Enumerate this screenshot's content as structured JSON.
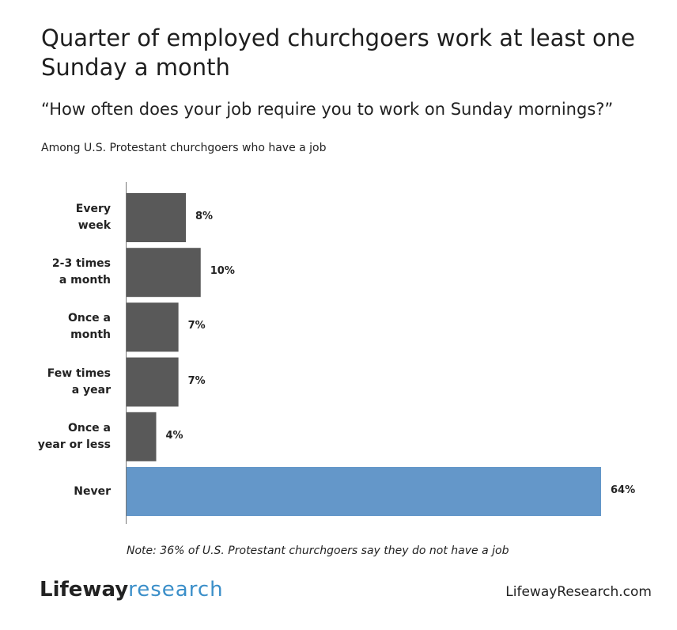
{
  "chart_data": {
    "type": "hbar",
    "title": "Quarter of employed churchgoers work at least one Sunday a month",
    "subtitle": "“How often does your job require you to work on Sunday mornings?”",
    "annotation": "Among U.S. Protestant churchgoers who have a job",
    "categories": [
      "Every\nweek",
      "2-3 times\na month",
      "Once a\nmonth",
      "Few times\na year",
      "Once a\nyear or less",
      "Never"
    ],
    "values": [
      8,
      10,
      7,
      7,
      4,
      64
    ],
    "value_labels": [
      "8%",
      "10%",
      "7%",
      "7%",
      "4%",
      "64%"
    ],
    "colors": [
      "#595959",
      "#595959",
      "#595959",
      "#595959",
      "#595959",
      "#6497c9"
    ],
    "xlim": [
      0,
      64
    ],
    "note": "Note: 36% of U.S. Protestant churchgoers say they do not have a job",
    "brand": {
      "name": "Lifeway",
      "suffix": "research"
    },
    "source_url": "LifewayResearch.com"
  }
}
